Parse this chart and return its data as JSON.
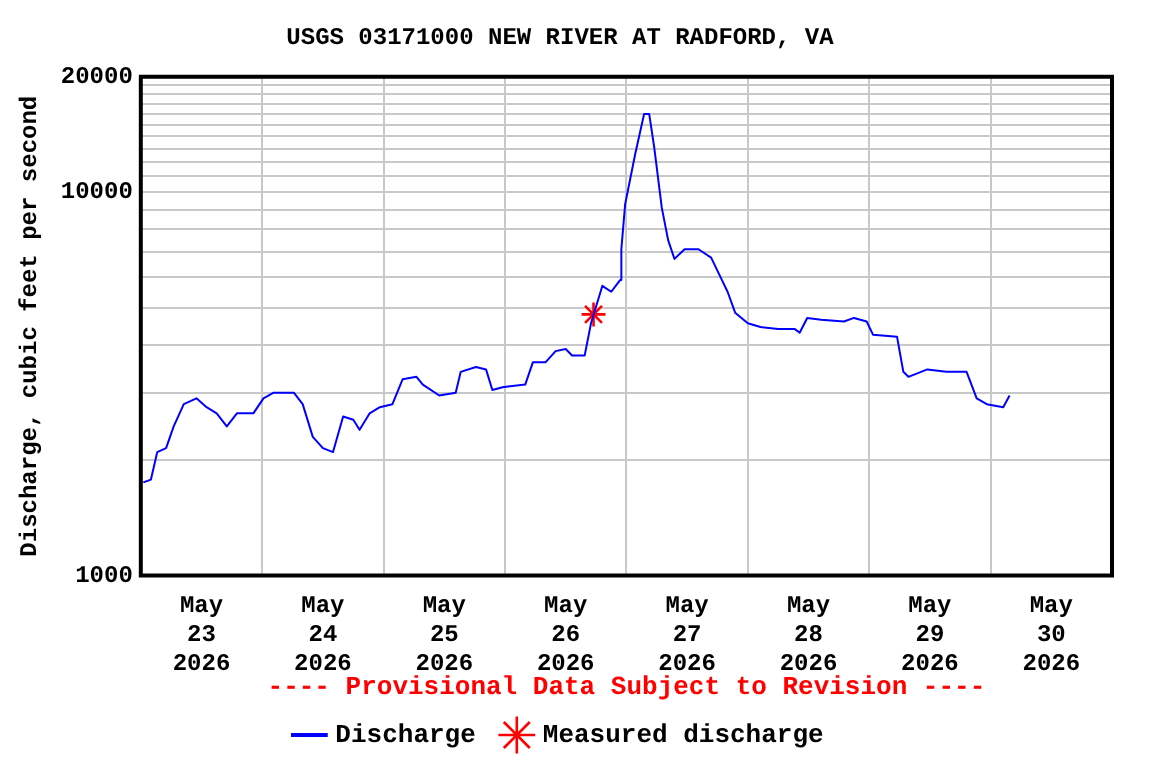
{
  "chart_data": {
    "type": "line",
    "title": "USGS 03171000 NEW RIVER AT RADFORD, VA",
    "ylabel": "Discharge, cubic feet per second",
    "log": "y",
    "grid": true,
    "legend": "bottom",
    "annotations": [
      "---- Provisional Data Subject to Revision ----"
    ],
    "xlim": [
      "2026-05-23T00:00",
      "2026-05-31T00:00"
    ],
    "xticks": [
      {
        "value": "2026-05-23T12:00",
        "label": "May 23 2026"
      },
      {
        "value": "2026-05-24T12:00",
        "label": "May 24 2026"
      },
      {
        "value": "2026-05-25T12:00",
        "label": "May 25 2026"
      },
      {
        "value": "2026-05-26T12:00",
        "label": "May 26 2026"
      },
      {
        "value": "2026-05-27T12:00",
        "label": "May 27 2026"
      },
      {
        "value": "2026-05-28T12:00",
        "label": "May 28 2026"
      },
      {
        "value": "2026-05-29T12:00",
        "label": "May 29 2026"
      },
      {
        "value": "2026-05-30T12:00",
        "label": "May 30 2026"
      },
      {
        "value": "2026-05-24T00:00",
        "label": null
      },
      {
        "value": "2026-05-25T00:00",
        "label": null
      },
      {
        "value": "2026-05-26T00:00",
        "label": null
      },
      {
        "value": "2026-05-27T00:00",
        "label": null
      },
      {
        "value": "2026-05-28T00:00",
        "label": null
      },
      {
        "value": "2026-05-29T00:00",
        "label": null
      },
      {
        "value": "2026-05-30T00:00",
        "label": null
      }
    ],
    "ylim": [
      1000,
      20000
    ],
    "yticks": [
      1000,
      {
        "value": 2000,
        "label": null
      },
      {
        "value": 3000,
        "label": null
      },
      {
        "value": 4000,
        "label": null
      },
      {
        "value": 5000,
        "label": null
      },
      {
        "value": 6000,
        "label": null
      },
      {
        "value": 7000,
        "label": null
      },
      {
        "value": 8000,
        "label": null
      },
      {
        "value": 9000,
        "label": null
      },
      10000,
      {
        "value": 11000,
        "label": null
      },
      {
        "value": 12000,
        "label": null
      },
      {
        "value": 13000,
        "label": null
      },
      {
        "value": 14000,
        "label": null
      },
      {
        "value": 15000,
        "label": null
      },
      {
        "value": 16000,
        "label": null
      },
      {
        "value": 17000,
        "label": null
      },
      {
        "value": 18000,
        "label": null
      },
      {
        "value": 19000,
        "label": null
      },
      20000
    ],
    "series": [
      {
        "name": "Discharge",
        "color": "#0000ff",
        "marker": "none",
        "x": [
          "2026-05-23T00:30",
          "2026-05-23T02:00",
          "2026-05-23T03:15",
          "2026-05-23T05:00",
          "2026-05-23T06:30",
          "2026-05-23T08:30",
          "2026-05-23T11:00",
          "2026-05-23T13:00",
          "2026-05-23T15:00",
          "2026-05-23T17:00",
          "2026-05-23T19:00",
          "2026-05-23T22:15",
          "2026-05-24T00:15",
          "2026-05-24T02:15",
          "2026-05-24T06:15",
          "2026-05-24T08:00",
          "2026-05-24T10:00",
          "2026-05-24T12:00",
          "2026-05-24T14:00",
          "2026-05-24T16:00",
          "2026-05-24T18:00",
          "2026-05-24T19:15",
          "2026-05-24T21:15",
          "2026-05-24T23:15",
          "2026-05-25T01:45",
          "2026-05-25T03:45",
          "2026-05-25T06:30",
          "2026-05-25T07:45",
          "2026-05-25T11:00",
          "2026-05-25T14:15",
          "2026-05-25T15:15",
          "2026-05-25T18:15",
          "2026-05-25T20:15",
          "2026-05-25T21:30",
          "2026-05-25T23:30",
          "2026-05-26T04:00",
          "2026-05-26T05:30",
          "2026-05-26T08:00",
          "2026-05-26T10:00",
          "2026-05-26T12:00",
          "2026-05-26T13:15",
          "2026-05-26T15:45",
          "2026-05-26T17:00",
          "2026-05-26T19:15",
          "2026-05-26T21:00",
          "2026-05-26T22:45",
          "2026-05-26T23:00",
          "2026-05-26T23:45",
          "2026-05-27T01:45",
          "2026-05-27T03:30",
          "2026-05-27T04:30",
          "2026-05-27T05:30",
          "2026-05-27T07:00",
          "2026-05-27T08:15",
          "2026-05-27T09:30",
          "2026-05-27T11:30",
          "2026-05-27T14:15",
          "2026-05-27T16:45",
          "2026-05-27T18:45",
          "2026-05-27T20:00",
          "2026-05-27T21:30",
          "2026-05-28T00:00",
          "2026-05-28T02:30",
          "2026-05-28T06:00",
          "2026-05-28T09:15",
          "2026-05-28T10:15",
          "2026-05-28T11:45",
          "2026-05-28T14:30",
          "2026-05-28T19:00",
          "2026-05-28T21:00",
          "2026-05-28T23:30",
          "2026-05-29T00:45",
          "2026-05-29T05:30",
          "2026-05-29T06:45",
          "2026-05-29T07:45",
          "2026-05-29T11:30",
          "2026-05-29T15:15",
          "2026-05-29T19:15",
          "2026-05-29T21:15",
          "2026-05-29T23:15",
          "2026-05-30T02:30",
          "2026-05-30T03:45"
        ],
        "values": [
          1750,
          1780,
          2100,
          2150,
          2450,
          2800,
          2900,
          2750,
          2650,
          2450,
          2650,
          2650,
          2900,
          3000,
          3000,
          2800,
          2300,
          2150,
          2100,
          2600,
          2550,
          2400,
          2650,
          2750,
          2800,
          3250,
          3300,
          3150,
          2950,
          3000,
          3400,
          3500,
          3450,
          3050,
          3100,
          3150,
          3600,
          3600,
          3850,
          3900,
          3750,
          3750,
          4550,
          5700,
          5500,
          5900,
          7100,
          9300,
          12600,
          16000,
          16000,
          13100,
          9100,
          7500,
          6700,
          7100,
          7100,
          6750,
          5950,
          5500,
          4850,
          4550,
          4450,
          4400,
          4400,
          4300,
          4700,
          4650,
          4600,
          4700,
          4600,
          4250,
          4200,
          3400,
          3300,
          3450,
          3400,
          3400,
          2900,
          2800,
          2750,
          2950
        ]
      },
      {
        "name": "Measured discharge",
        "type": "scatter",
        "color": "#ff0000",
        "marker": "cross",
        "x": [
          "2026-05-26T17:30"
        ],
        "values": [
          4800
        ]
      }
    ]
  }
}
